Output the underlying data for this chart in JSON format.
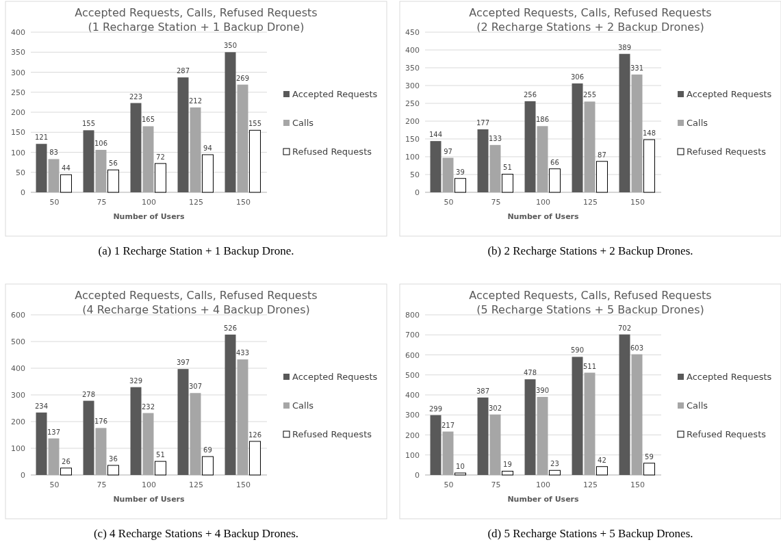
{
  "chart_data": [
    {
      "type": "bar",
      "title": "Accepted Requests, Calls, Refused Requests\n(1 Recharge Station + 1 Backup Drone)",
      "xlabel": "Number of Users",
      "categories": [
        "50",
        "75",
        "100",
        "125",
        "150"
      ],
      "ylim": [
        0,
        400
      ],
      "yticks": [
        0,
        50,
        100,
        150,
        200,
        250,
        300,
        350,
        400
      ],
      "grid": "y",
      "legend": "right",
      "data_labels": true,
      "annotations": [
        "(a) 1 Recharge Station + 1 Backup Drone."
      ],
      "series": [
        {
          "name": "Accepted Requests",
          "color": "#595959",
          "values": [
            121,
            155,
            223,
            287,
            350
          ]
        },
        {
          "name": "Calls",
          "color": "#a6a6a6",
          "values": [
            83,
            106,
            165,
            212,
            269
          ]
        },
        {
          "name": "Refused Requests",
          "color": "#ffffff",
          "values": [
            44,
            56,
            72,
            94,
            155
          ]
        }
      ]
    },
    {
      "type": "bar",
      "title": "Accepted Requests, Calls, Refused Requests\n(2 Recharge Stations + 2 Backup Drones)",
      "xlabel": "Number of Users",
      "categories": [
        "50",
        "75",
        "100",
        "125",
        "150"
      ],
      "ylim": [
        0,
        450
      ],
      "yticks": [
        0,
        50,
        100,
        150,
        200,
        250,
        300,
        350,
        400,
        450
      ],
      "grid": "y",
      "legend": "right",
      "data_labels": true,
      "annotations": [
        "(b) 2 Recharge Stations + 2 Backup Drones."
      ],
      "series": [
        {
          "name": "Accepted Requests",
          "color": "#595959",
          "values": [
            144,
            177,
            256,
            306,
            389
          ]
        },
        {
          "name": "Calls",
          "color": "#a6a6a6",
          "values": [
            97,
            133,
            186,
            255,
            331
          ]
        },
        {
          "name": "Refused Requests",
          "color": "#ffffff",
          "values": [
            39,
            51,
            66,
            87,
            148
          ]
        }
      ]
    },
    {
      "type": "bar",
      "title": "Accepted Requests, Calls, Refused Requests\n(4 Recharge Stations + 4 Backup Drones)",
      "xlabel": "Number of Users",
      "categories": [
        "50",
        "75",
        "100",
        "125",
        "150"
      ],
      "ylim": [
        0,
        600
      ],
      "yticks": [
        0,
        100,
        200,
        300,
        400,
        500,
        600
      ],
      "grid": "y",
      "legend": "right",
      "data_labels": true,
      "annotations": [
        "(c) 4 Recharge Stations + 4 Backup Drones."
      ],
      "series": [
        {
          "name": "Accepted Requests",
          "color": "#595959",
          "values": [
            234,
            278,
            329,
            397,
            526
          ]
        },
        {
          "name": "Calls",
          "color": "#a6a6a6",
          "values": [
            137,
            176,
            232,
            307,
            433
          ]
        },
        {
          "name": "Refused Requests",
          "color": "#ffffff",
          "values": [
            26,
            36,
            51,
            69,
            126
          ]
        }
      ]
    },
    {
      "type": "bar",
      "title": "Accepted Requests, Calls, Refused Requests\n(5 Recharge Stations + 5 Backup Drones)",
      "xlabel": "Number of Users",
      "categories": [
        "50",
        "75",
        "100",
        "125",
        "150"
      ],
      "ylim": [
        0,
        800
      ],
      "yticks": [
        0,
        100,
        200,
        300,
        400,
        500,
        600,
        700,
        800
      ],
      "grid": "y",
      "legend": "right",
      "data_labels": true,
      "annotations": [
        "(d) 5 Recharge Stations + 5 Backup Drones."
      ],
      "series": [
        {
          "name": "Accepted Requests",
          "color": "#595959",
          "values": [
            299,
            387,
            478,
            590,
            702
          ]
        },
        {
          "name": "Calls",
          "color": "#a6a6a6",
          "values": [
            217,
            302,
            390,
            511,
            603
          ]
        },
        {
          "name": "Refused Requests",
          "color": "#ffffff",
          "values": [
            10,
            19,
            23,
            42,
            59
          ]
        }
      ]
    }
  ]
}
